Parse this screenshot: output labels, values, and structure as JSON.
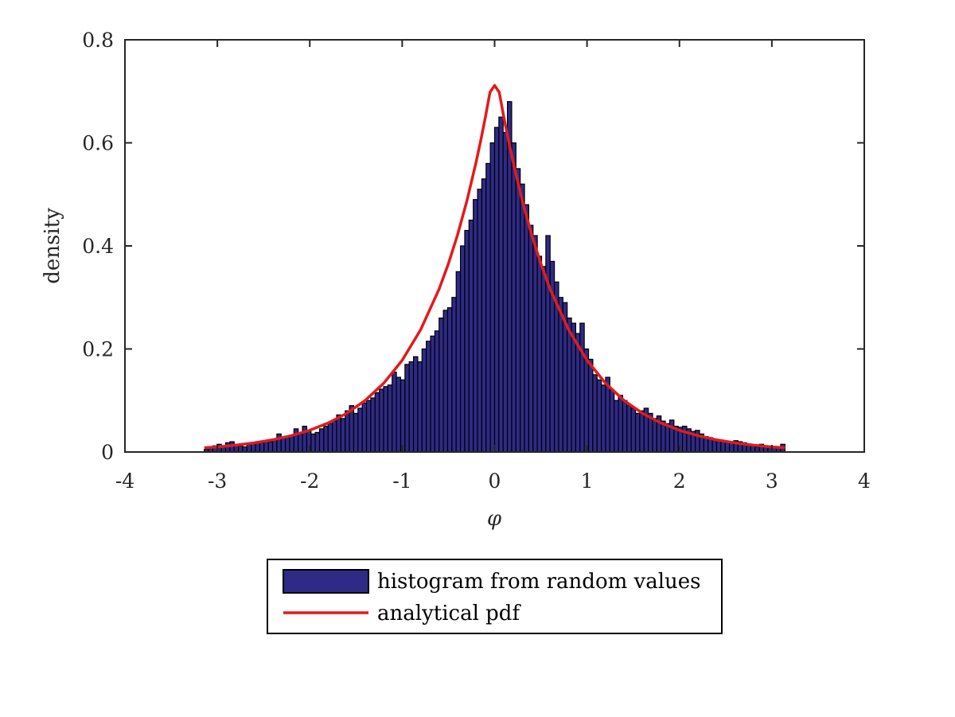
{
  "chart_data": {
    "type": "bar",
    "xlabel": "φ",
    "ylabel": "density",
    "xlim": [
      -4,
      4
    ],
    "ylim": [
      0,
      0.8
    ],
    "x_ticks": [
      -4,
      -3,
      -2,
      -1,
      0,
      1,
      2,
      3,
      4
    ],
    "x_tick_labels": [
      "-4",
      "-3",
      "-2",
      "-1",
      "0",
      "1",
      "2",
      "3",
      "4"
    ],
    "y_ticks": [
      0,
      0.2,
      0.4,
      0.6,
      0.8
    ],
    "y_tick_labels": [
      "0",
      "0.2",
      "0.4",
      "0.6",
      "0.8"
    ],
    "grid": false,
    "legend_position": "below the plot, centered",
    "series": [
      {
        "name": "histogram from random values",
        "kind": "histogram",
        "color": "#2e2a86",
        "edge_color": "#000000",
        "bin_range": [
          -3.1416,
          3.1416
        ],
        "values": [
          0.005,
          0.008,
          0.012,
          0.015,
          0.01,
          0.018,
          0.02,
          0.015,
          0.012,
          0.01,
          0.015,
          0.016,
          0.02,
          0.018,
          0.022,
          0.02,
          0.025,
          0.035,
          0.028,
          0.03,
          0.032,
          0.045,
          0.035,
          0.05,
          0.04,
          0.035,
          0.038,
          0.045,
          0.05,
          0.055,
          0.06,
          0.072,
          0.065,
          0.08,
          0.09,
          0.075,
          0.085,
          0.095,
          0.1,
          0.105,
          0.115,
          0.122,
          0.127,
          0.13,
          0.155,
          0.145,
          0.14,
          0.17,
          0.175,
          0.185,
          0.175,
          0.2,
          0.215,
          0.225,
          0.235,
          0.26,
          0.275,
          0.28,
          0.3,
          0.35,
          0.4,
          0.43,
          0.45,
          0.49,
          0.51,
          0.53,
          0.56,
          0.6,
          0.63,
          0.65,
          0.62,
          0.68,
          0.6,
          0.55,
          0.52,
          0.48,
          0.44,
          0.42,
          0.38,
          0.36,
          0.42,
          0.37,
          0.33,
          0.3,
          0.29,
          0.26,
          0.25,
          0.23,
          0.25,
          0.2,
          0.18,
          0.15,
          0.14,
          0.13,
          0.145,
          0.12,
          0.1,
          0.11,
          0.1,
          0.09,
          0.085,
          0.075,
          0.08,
          0.085,
          0.075,
          0.065,
          0.07,
          0.06,
          0.055,
          0.062,
          0.05,
          0.048,
          0.05,
          0.045,
          0.04,
          0.042,
          0.035,
          0.03,
          0.028,
          0.025,
          0.022,
          0.02,
          0.02,
          0.018,
          0.022,
          0.02,
          0.018,
          0.015,
          0.012,
          0.01,
          0.015,
          0.012,
          0.01,
          0.008,
          0.008,
          0.015
        ]
      },
      {
        "name": "analytical pdf",
        "kind": "line",
        "color": "#e31a1c",
        "x": [
          -3.1416,
          -3.0,
          -2.8,
          -2.6,
          -2.4,
          -2.2,
          -2.0,
          -1.8,
          -1.6,
          -1.4,
          -1.2,
          -1.0,
          -0.8,
          -0.6,
          -0.5,
          -0.4,
          -0.3,
          -0.2,
          -0.15,
          -0.1,
          -0.05,
          0.0,
          0.05,
          0.1,
          0.15,
          0.2,
          0.3,
          0.4,
          0.5,
          0.6,
          0.8,
          1.0,
          1.2,
          1.4,
          1.6,
          1.8,
          2.0,
          2.2,
          2.4,
          2.6,
          2.8,
          3.0,
          3.1416
        ],
        "y": [
          0.0084,
          0.0098,
          0.0133,
          0.0178,
          0.0237,
          0.0317,
          0.0422,
          0.0563,
          0.0751,
          0.1001,
          0.1335,
          0.178,
          0.2374,
          0.3165,
          0.3655,
          0.422,
          0.4873,
          0.5627,
          0.6047,
          0.6497,
          0.6982,
          0.7114,
          0.6982,
          0.6497,
          0.6047,
          0.5627,
          0.4873,
          0.422,
          0.3655,
          0.3165,
          0.2374,
          0.178,
          0.1335,
          0.1001,
          0.0751,
          0.0563,
          0.0422,
          0.0317,
          0.0237,
          0.0178,
          0.0133,
          0.0098,
          0.0084
        ]
      }
    ]
  }
}
